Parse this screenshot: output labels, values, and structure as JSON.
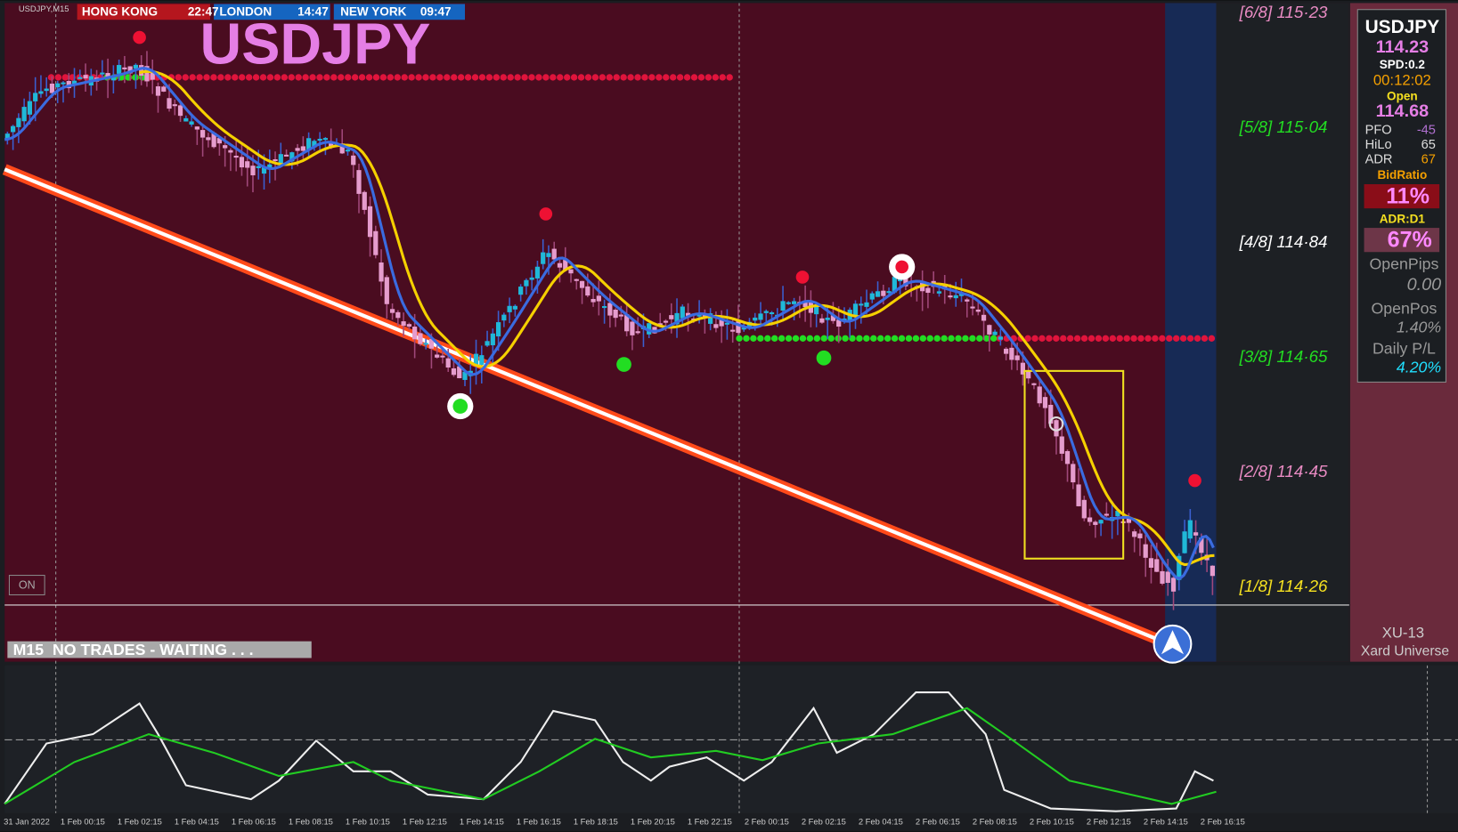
{
  "header": {
    "symbol_tf": "USDJPY,M15",
    "clocks": [
      {
        "city": "HONG KONG",
        "time": "22:47"
      },
      {
        "city": "LONDON",
        "time": "14:47"
      },
      {
        "city": "NEW YORK",
        "time": "09:47"
      }
    ]
  },
  "big_symbol": "USDJPY",
  "levels": [
    "[6/8] 115·23",
    "[5/8] 115·04",
    "[4/8] 114·84",
    "[3/8] 114·65",
    "[2/8] 114·45",
    "[1/8] 114·26"
  ],
  "panel": {
    "symbol": "USDJPY",
    "price": "114.23",
    "spread": "SPD:0.2",
    "timer": "00:12:02",
    "open_label": "Open",
    "open": "114.68",
    "stats": [
      [
        "PFO",
        "-45"
      ],
      [
        "HiLo",
        "65"
      ],
      [
        "ADR",
        "67"
      ]
    ],
    "bid_ratio_label": "BidRatio",
    "bid_ratio": "11%",
    "adr_d1_label": "ADR:D1",
    "adr_d1": "67%",
    "open_pips_label": "OpenPips",
    "open_pips": "0.00",
    "open_pos_label": "OpenPos",
    "open_pos": "1.40%",
    "daily_pl_label": "Daily P/L",
    "daily_pl": "4.20%"
  },
  "on_button": "ON",
  "status": "M15  NO TRADES - WAITING . . .",
  "brand": [
    "XU-13",
    "Xard Universe"
  ],
  "time_axis": [
    "31 Jan 2022",
    "1 Feb 00:15",
    "1 Feb 02:15",
    "1 Feb 04:15",
    "1 Feb 06:15",
    "1 Feb 08:15",
    "1 Feb 10:15",
    "1 Feb 12:15",
    "1 Feb 14:15",
    "1 Feb 16:15",
    "1 Feb 18:15",
    "1 Feb 20:15",
    "1 Feb 22:15",
    "2 Feb 00:15",
    "2 Feb 02:15",
    "2 Feb 04:15",
    "2 Feb 06:15",
    "2 Feb 08:15",
    "2 Feb 10:15",
    "2 Feb 12:15",
    "2 Feb 14:15",
    "2 Feb 16:15"
  ]
}
